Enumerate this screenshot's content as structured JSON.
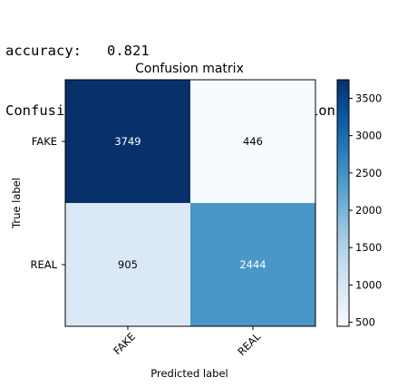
{
  "console": {
    "accuracy_label": "accuracy:",
    "accuracy_value": "0.821",
    "subtitle": "Confusion matrix, without normalization"
  },
  "chart_data": {
    "type": "heatmap",
    "title": "Confusion matrix",
    "xlabel": "Predicted label",
    "ylabel": "True label",
    "x_categories": [
      "FAKE",
      "REAL"
    ],
    "y_categories": [
      "FAKE",
      "REAL"
    ],
    "values": [
      [
        3749,
        446
      ],
      [
        905,
        2444
      ]
    ],
    "colormap": "Blues",
    "colorbar": {
      "min": 446,
      "max": 3749,
      "ticks": [
        500,
        1000,
        1500,
        2000,
        2500,
        3000,
        3500
      ]
    },
    "text_colors": {
      "light": "#ffffff",
      "dark": "#000000"
    }
  }
}
